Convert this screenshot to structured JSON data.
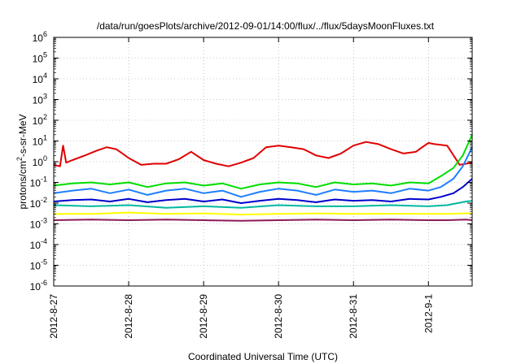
{
  "chart_data": {
    "type": "line",
    "title": "/data/run/goesPlots/archive/2012-09-01/14:00/flux/../flux/5daysMoonFluxes.txt",
    "xlabel": "Coordinated Universal Time (UTC)",
    "ylabel": {
      "pre": "protons/cm",
      "sup": "2",
      "post": "-s-sr-MeV"
    },
    "yscale": "log",
    "ylim": [
      1e-06,
      1000000.0
    ],
    "xlim": [
      "2012-08-27T00:00",
      "2012-09-01T14:00"
    ],
    "grid": true,
    "legend": "none",
    "y_ticks": [
      {
        "value": 1e-06,
        "exp": "-6"
      },
      {
        "value": 1e-05,
        "exp": "-5"
      },
      {
        "value": 0.0001,
        "exp": "-4"
      },
      {
        "value": 0.001,
        "exp": "-3"
      },
      {
        "value": 0.01,
        "exp": "-2"
      },
      {
        "value": 0.1,
        "exp": "-1"
      },
      {
        "value": 1,
        "exp": "0"
      },
      {
        "value": 10,
        "exp": "1"
      },
      {
        "value": 100,
        "exp": "2"
      },
      {
        "value": 1000,
        "exp": "3"
      },
      {
        "value": 10000,
        "exp": "4"
      },
      {
        "value": 100000,
        "exp": "5"
      },
      {
        "value": 1000000,
        "exp": "6"
      }
    ],
    "x_ticks": [
      {
        "value": "2012-08-27T00:00",
        "label": "2012-8-27"
      },
      {
        "value": "2012-08-28T00:00",
        "label": "2012-8-28"
      },
      {
        "value": "2012-08-29T00:00",
        "label": "2012-8-29"
      },
      {
        "value": "2012-08-30T00:00",
        "label": "2012-8-30"
      },
      {
        "value": "2012-08-31T00:00",
        "label": "2012-8-31"
      },
      {
        "value": "2012-09-01T00:00",
        "label": "2012-9-1"
      }
    ],
    "series": [
      {
        "color": "#e00000",
        "x": [
          "2012-08-27T00:00",
          "2012-08-27T02:00",
          "2012-08-27T03:00",
          "2012-08-27T04:00",
          "2012-08-27T06:00",
          "2012-08-27T10:00",
          "2012-08-27T14:00",
          "2012-08-27T17:00",
          "2012-08-27T20:00",
          "2012-08-27T22:00",
          "2012-08-28T00:00",
          "2012-08-28T04:00",
          "2012-08-28T08:00",
          "2012-08-28T12:00",
          "2012-08-28T16:00",
          "2012-08-28T20:00",
          "2012-08-29T00:00",
          "2012-08-29T04:00",
          "2012-08-29T08:00",
          "2012-08-29T12:00",
          "2012-08-29T16:00",
          "2012-08-29T20:00",
          "2012-08-30T00:00",
          "2012-08-30T04:00",
          "2012-08-30T08:00",
          "2012-08-30T12:00",
          "2012-08-30T16:00",
          "2012-08-30T20:00",
          "2012-08-31T00:00",
          "2012-08-31T04:00",
          "2012-08-31T08:00",
          "2012-08-31T12:00",
          "2012-08-31T16:00",
          "2012-08-31T20:00",
          "2012-08-31T22:00",
          "2012-09-01T00:00",
          "2012-09-01T02:00",
          "2012-09-01T06:00",
          "2012-09-01T10:00",
          "2012-09-01T14:00"
        ],
        "y": [
          0.7,
          0.6,
          6,
          0.9,
          1.2,
          2,
          3.5,
          5,
          4,
          2.5,
          1.5,
          0.7,
          0.8,
          0.8,
          1.3,
          3,
          1.2,
          0.8,
          0.6,
          0.9,
          1.5,
          5,
          6,
          5,
          4,
          2,
          1.5,
          2.5,
          6,
          9,
          7,
          4,
          2.5,
          3,
          5,
          8,
          7,
          6,
          0.7,
          0.9
        ]
      },
      {
        "color": "#00dd00",
        "x": [
          "2012-08-27T00:00",
          "2012-08-27T06:00",
          "2012-08-27T12:00",
          "2012-08-27T18:00",
          "2012-08-28T00:00",
          "2012-08-28T06:00",
          "2012-08-28T12:00",
          "2012-08-28T18:00",
          "2012-08-29T00:00",
          "2012-08-29T06:00",
          "2012-08-29T12:00",
          "2012-08-29T18:00",
          "2012-08-30T00:00",
          "2012-08-30T06:00",
          "2012-08-30T12:00",
          "2012-08-30T18:00",
          "2012-08-31T00:00",
          "2012-08-31T06:00",
          "2012-08-31T12:00",
          "2012-08-31T18:00",
          "2012-09-01T00:00",
          "2012-09-01T04:00",
          "2012-09-01T08:00",
          "2012-09-01T11:00",
          "2012-09-01T14:00"
        ],
        "y": [
          0.07,
          0.09,
          0.1,
          0.08,
          0.1,
          0.06,
          0.09,
          0.1,
          0.07,
          0.09,
          0.05,
          0.08,
          0.1,
          0.09,
          0.06,
          0.1,
          0.08,
          0.09,
          0.07,
          0.1,
          0.09,
          0.2,
          0.5,
          2,
          20
        ]
      },
      {
        "color": "#1e7fff",
        "x": [
          "2012-08-27T00:00",
          "2012-08-27T06:00",
          "2012-08-27T12:00",
          "2012-08-27T18:00",
          "2012-08-28T00:00",
          "2012-08-28T06:00",
          "2012-08-28T12:00",
          "2012-08-28T18:00",
          "2012-08-29T00:00",
          "2012-08-29T06:00",
          "2012-08-29T12:00",
          "2012-08-29T18:00",
          "2012-08-30T00:00",
          "2012-08-30T06:00",
          "2012-08-30T12:00",
          "2012-08-30T18:00",
          "2012-08-31T00:00",
          "2012-08-31T06:00",
          "2012-08-31T12:00",
          "2012-08-31T18:00",
          "2012-09-01T00:00",
          "2012-09-01T04:00",
          "2012-09-01T08:00",
          "2012-09-01T11:00",
          "2012-09-01T14:00"
        ],
        "y": [
          0.03,
          0.04,
          0.05,
          0.03,
          0.045,
          0.025,
          0.04,
          0.05,
          0.03,
          0.04,
          0.02,
          0.035,
          0.05,
          0.04,
          0.025,
          0.045,
          0.035,
          0.04,
          0.03,
          0.05,
          0.04,
          0.06,
          0.15,
          0.6,
          5
        ]
      },
      {
        "color": "#0000cc",
        "x": [
          "2012-08-27T00:00",
          "2012-08-27T06:00",
          "2012-08-27T12:00",
          "2012-08-27T18:00",
          "2012-08-28T00:00",
          "2012-08-28T06:00",
          "2012-08-28T12:00",
          "2012-08-28T18:00",
          "2012-08-29T00:00",
          "2012-08-29T06:00",
          "2012-08-29T12:00",
          "2012-08-29T18:00",
          "2012-08-30T00:00",
          "2012-08-30T06:00",
          "2012-08-30T12:00",
          "2012-08-30T18:00",
          "2012-08-31T00:00",
          "2012-08-31T06:00",
          "2012-08-31T12:00",
          "2012-08-31T18:00",
          "2012-09-01T00:00",
          "2012-09-01T04:00",
          "2012-09-01T08:00",
          "2012-09-01T11:00",
          "2012-09-01T14:00"
        ],
        "y": [
          0.012,
          0.014,
          0.015,
          0.012,
          0.016,
          0.011,
          0.014,
          0.016,
          0.012,
          0.015,
          0.01,
          0.013,
          0.016,
          0.014,
          0.011,
          0.015,
          0.013,
          0.014,
          0.012,
          0.016,
          0.015,
          0.02,
          0.03,
          0.06,
          0.15
        ]
      },
      {
        "color": "#00b8a0",
        "x": [
          "2012-08-27T00:00",
          "2012-08-27T12:00",
          "2012-08-28T00:00",
          "2012-08-28T12:00",
          "2012-08-29T00:00",
          "2012-08-29T12:00",
          "2012-08-30T00:00",
          "2012-08-30T12:00",
          "2012-08-31T00:00",
          "2012-08-31T12:00",
          "2012-09-01T00:00",
          "2012-09-01T06:00",
          "2012-09-01T12:00",
          "2012-09-01T14:00"
        ],
        "y": [
          0.008,
          0.007,
          0.008,
          0.006,
          0.007,
          0.006,
          0.008,
          0.007,
          0.007,
          0.008,
          0.007,
          0.008,
          0.012,
          0.013
        ]
      },
      {
        "color": "#ffff00",
        "x": [
          "2012-08-27T00:00",
          "2012-08-27T12:00",
          "2012-08-28T00:00",
          "2012-08-28T12:00",
          "2012-08-29T00:00",
          "2012-08-29T12:00",
          "2012-08-30T00:00",
          "2012-08-30T12:00",
          "2012-08-31T00:00",
          "2012-08-31T12:00",
          "2012-09-01T00:00",
          "2012-09-01T06:00",
          "2012-09-01T12:00",
          "2012-09-01T14:00"
        ],
        "y": [
          0.003,
          0.003,
          0.0035,
          0.003,
          0.0032,
          0.0028,
          0.003,
          0.0032,
          0.003,
          0.0031,
          0.003,
          0.003,
          0.0032,
          0.0032
        ]
      },
      {
        "color": "#8b1a5a",
        "x": [
          "2012-08-27T00:00",
          "2012-08-27T12:00",
          "2012-08-28T00:00",
          "2012-08-28T12:00",
          "2012-08-29T00:00",
          "2012-08-29T12:00",
          "2012-08-30T00:00",
          "2012-08-30T12:00",
          "2012-08-31T00:00",
          "2012-08-31T12:00",
          "2012-09-01T00:00",
          "2012-09-01T06:00",
          "2012-09-01T12:00",
          "2012-09-01T14:00"
        ],
        "y": [
          0.0015,
          0.0016,
          0.0015,
          0.0016,
          0.0015,
          0.0014,
          0.0015,
          0.0016,
          0.0015,
          0.0016,
          0.0015,
          0.0015,
          0.0016,
          0.0015
        ]
      }
    ]
  }
}
